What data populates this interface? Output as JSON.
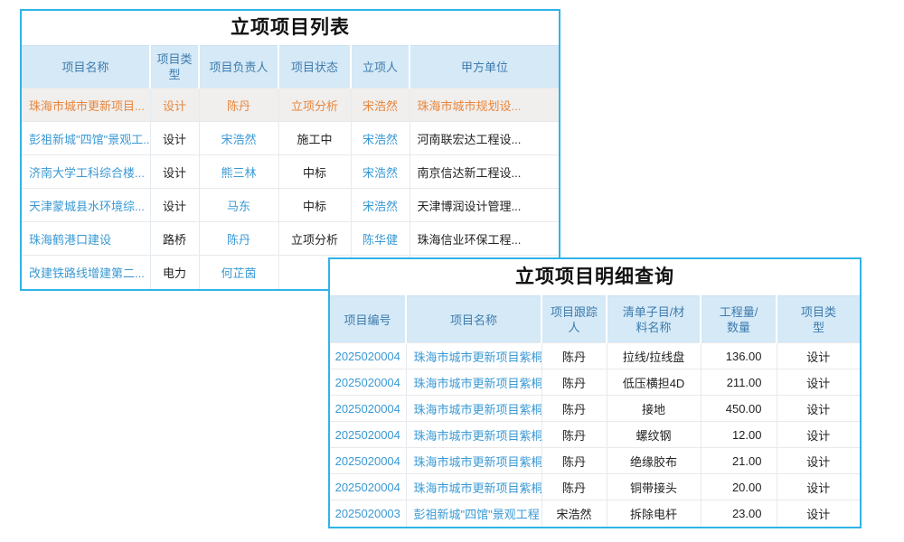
{
  "colors": {
    "panel_border": "#30b3e8",
    "header_bg": "#d5e9f7",
    "header_text": "#3f7cad",
    "link_text": "#3a99d4",
    "highlight_text": "#e8863c",
    "highlight_bg": "#f0efee"
  },
  "panel1": {
    "title": "立项项目列表",
    "columns": [
      "项目名称",
      "项目类型",
      "项目负责人",
      "项目状态",
      "立项人",
      "甲方单位"
    ],
    "rows": [
      {
        "name": "珠海市城市更新项目...",
        "type": "设计",
        "manager": "陈丹",
        "status": "立项分析",
        "initiator": "宋浩然",
        "client": "珠海市城市规划设...",
        "highlighted": true
      },
      {
        "name": "彭祖新城\"四馆\"景观工...",
        "type": "设计",
        "manager": "宋浩然",
        "status": "施工中",
        "initiator": "宋浩然",
        "client": "河南联宏达工程设..."
      },
      {
        "name": "济南大学工科综合楼...",
        "type": "设计",
        "manager": "熊三林",
        "status": "中标",
        "initiator": "宋浩然",
        "client": "南京信达新工程设..."
      },
      {
        "name": "天津蒙城县水环境综...",
        "type": "设计",
        "manager": "马东",
        "status": "中标",
        "initiator": "宋浩然",
        "client": "天津博润设计管理..."
      },
      {
        "name": "珠海鹤港口建设",
        "type": "路桥",
        "manager": "陈丹",
        "status": "立项分析",
        "initiator": "陈华健",
        "client": "珠海信业环保工程..."
      },
      {
        "name": "改建铁路线增建第二...",
        "type": "电力",
        "manager": "何芷茵",
        "status": "",
        "initiator": "",
        "client": ""
      }
    ]
  },
  "panel2": {
    "title": "立项项目明细查询",
    "columns": [
      "项目编号",
      "项目名称",
      "项目跟踪人",
      "清单子目/材料名称",
      "工程量/数量",
      "项目类型"
    ],
    "rows": [
      {
        "code": "2025020004",
        "name": "珠海市城市更新项目紫桐",
        "tracker": "陈丹",
        "material": "拉线/拉线盘",
        "qty": "136.00",
        "type": "设计"
      },
      {
        "code": "2025020004",
        "name": "珠海市城市更新项目紫桐",
        "tracker": "陈丹",
        "material": "低压横担4D",
        "qty": "211.00",
        "type": "设计"
      },
      {
        "code": "2025020004",
        "name": "珠海市城市更新项目紫桐",
        "tracker": "陈丹",
        "material": "接地",
        "qty": "450.00",
        "type": "设计"
      },
      {
        "code": "2025020004",
        "name": "珠海市城市更新项目紫桐",
        "tracker": "陈丹",
        "material": "螺纹钢",
        "qty": "12.00",
        "type": "设计"
      },
      {
        "code": "2025020004",
        "name": "珠海市城市更新项目紫桐",
        "tracker": "陈丹",
        "material": "绝缘胶布",
        "qty": "21.00",
        "type": "设计"
      },
      {
        "code": "2025020004",
        "name": "珠海市城市更新项目紫桐",
        "tracker": "陈丹",
        "material": "铜带接头",
        "qty": "20.00",
        "type": "设计"
      },
      {
        "code": "2025020003",
        "name": "彭祖新城\"四馆\"景观工程",
        "tracker": "宋浩然",
        "material": "拆除电杆",
        "qty": "23.00",
        "type": "设计"
      }
    ]
  }
}
